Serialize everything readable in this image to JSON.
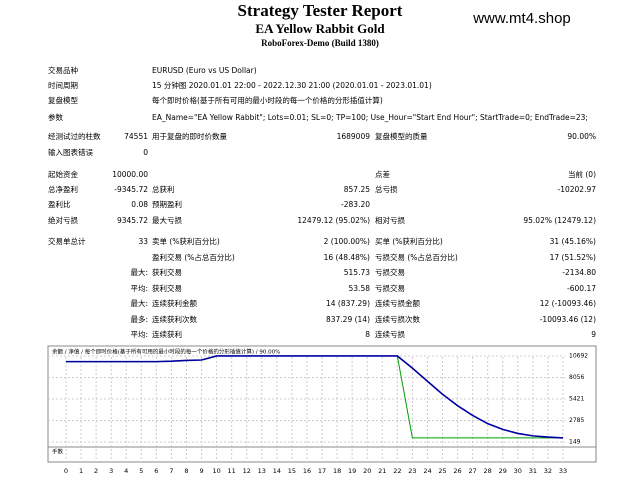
{
  "header": {
    "title": "Strategy Tester Report",
    "subtitle": "EA Yellow Rabbit Gold",
    "server": "RoboForex-Demo (Build 1380)",
    "watermark": "www.mt4.shop"
  },
  "info": [
    [
      "交易品种",
      "EURUSD (Euro vs US Dollar)"
    ],
    [
      "时间周期",
      "15 分钟图 2020.01.01 22:00 - 2022.12.30 21:00 (2020.01.01 - 2023.01.01)"
    ],
    [
      "复盘模型",
      "每个即时价格(基于所有可用的最小时段的每一个价格的分形插值计算)"
    ],
    [
      "参数",
      "EA_Name=\"EA Yellow Rabbit\"; Lots=0.01; SL=0; TP=100; Use_Hour=\"Start End Hour\"; StartTrade=0; EndTrade=23;"
    ]
  ],
  "stats": [
    [
      "经测试过的柱数",
      "74551",
      "用于复盘的即时价数量",
      "1689009",
      "复盘模型的质量",
      "90.00%"
    ],
    [
      "输入图表错误",
      "0",
      null,
      null,
      null,
      null
    ],
    [
      "起始资金",
      "10000.00",
      null,
      null,
      "点差",
      "当前 (0)"
    ],
    [
      "总净盈利",
      "-9345.72",
      "总获利",
      "857.25",
      "总亏损",
      "-10202.97"
    ],
    [
      "盈利比",
      "0.08",
      "预期盈利",
      "-283.20",
      null,
      null
    ],
    [
      "绝对亏损",
      "9345.72",
      "最大亏损",
      "12479.12 (95.02%)",
      "相对亏损",
      "95.02% (12479.12)"
    ],
    [
      "交易单总计",
      "33",
      "卖单 (%获利百分比)",
      "2 (100.00%)",
      "买单 (%获利百分比)",
      "31 (45.16%)"
    ],
    [
      null,
      null,
      "盈利交易 (%占总百分比)",
      "16 (48.48%)",
      "亏损交易 (%占总百分比)",
      "17 (51.52%)"
    ],
    [
      null,
      "最大:",
      "获利交易",
      "515.73",
      "亏损交易",
      "-2134.80"
    ],
    [
      null,
      "平均:",
      "获利交易",
      "53.58",
      "亏损交易",
      "-600.17"
    ],
    [
      null,
      "最大:",
      "连续获利金额",
      "14 (837.29)",
      "连续亏损金额",
      "12 (-10093.46)"
    ],
    [
      null,
      "最多:",
      "连续获利次数",
      "837.29 (14)",
      "连续亏损次数",
      "-10093.46 (12)"
    ],
    [
      null,
      "平均:",
      "连续获利",
      "8",
      "连续亏损",
      "9"
    ]
  ],
  "chart_data": {
    "type": "line",
    "legend": "余额 / 净值 / 每个即时价格(基于所有可用的最小时段的每一个价格的分形插值计算) / 90.00%",
    "lots_label": "手数",
    "x": [
      0,
      1,
      2,
      3,
      4,
      5,
      6,
      7,
      8,
      9,
      10,
      11,
      12,
      13,
      14,
      15,
      16,
      17,
      18,
      19,
      20,
      21,
      22,
      23,
      24,
      25,
      26,
      27,
      28,
      29,
      30,
      31,
      32,
      33
    ],
    "series": [
      {
        "name": "余额",
        "color": "#0000a0",
        "values": [
          10000,
          10000,
          10000,
          10000,
          10000,
          10000,
          10000,
          10050,
          10150,
          10200,
          10692,
          10692,
          10692,
          10692,
          10692,
          10692,
          10692,
          10692,
          10692,
          10692,
          10692,
          10692,
          10692,
          9200,
          7600,
          6000,
          4600,
          3400,
          2400,
          1700,
          1200,
          900,
          750,
          654
        ]
      },
      {
        "name": "净值",
        "color": "#00a000",
        "values": [
          10000,
          10000,
          10000,
          10000,
          10000,
          10000,
          10000,
          10050,
          10150,
          10200,
          10692,
          10692,
          10692,
          10692,
          10692,
          10692,
          10692,
          10692,
          10692,
          10692,
          10692,
          10692,
          10692,
          654,
          654,
          654,
          654,
          654,
          654,
          654,
          654,
          654,
          654,
          654
        ]
      }
    ],
    "xlim": [
      0,
      33
    ],
    "xticks": [
      0,
      1,
      2,
      3,
      4,
      5,
      6,
      7,
      8,
      9,
      10,
      11,
      12,
      13,
      14,
      15,
      16,
      17,
      18,
      19,
      20,
      21,
      22,
      23,
      24,
      25,
      26,
      27,
      28,
      29,
      30,
      31,
      32,
      33
    ],
    "ylim": [
      -340,
      11670
    ],
    "yticks": [
      149,
      2785,
      5421,
      8056,
      10692
    ],
    "grid": true
  }
}
